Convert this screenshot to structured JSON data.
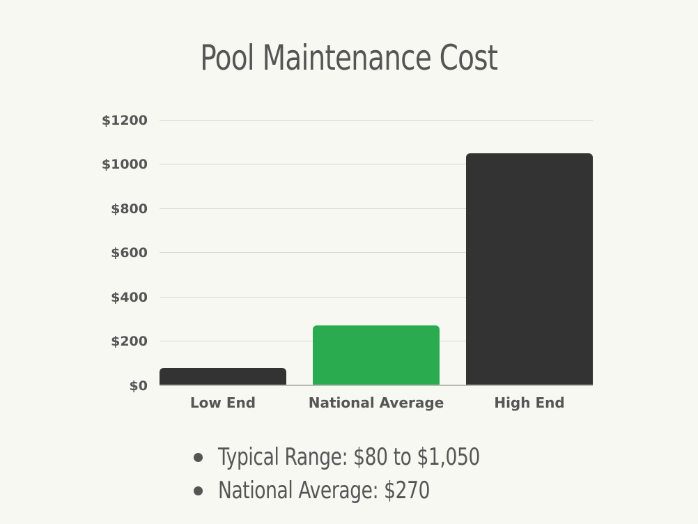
{
  "title": "Pool Maintenance Cost",
  "axis": {
    "y_ticks": [
      "$0",
      "$200",
      "$400",
      "$600",
      "$800",
      "$1000",
      "$1200"
    ]
  },
  "bars": [
    {
      "label": "Low End",
      "value": 80,
      "color": "#333333"
    },
    {
      "label": "National Average",
      "value": 270,
      "color": "#2aab50"
    },
    {
      "label": "High End",
      "value": 1050,
      "color": "#333333"
    }
  ],
  "notes": [
    "Typical Range: $80 to $1,050",
    "National Average: $270"
  ],
  "chart_data": {
    "type": "bar",
    "title": "Pool Maintenance Cost",
    "categories": [
      "Low End",
      "National Average",
      "High End"
    ],
    "values": [
      80,
      270,
      1050
    ],
    "colors": [
      "#333333",
      "#2aab50",
      "#333333"
    ],
    "xlabel": "",
    "ylabel": "",
    "ylim": [
      0,
      1200
    ],
    "y_ticks": [
      0,
      200,
      400,
      600,
      800,
      1000,
      1200
    ],
    "y_tick_labels": [
      "$0",
      "$200",
      "$400",
      "$600",
      "$800",
      "$1000",
      "$1200"
    ],
    "grid": true,
    "legend": null,
    "annotations": [
      "Typical Range: $80 to $1,050",
      "National Average: $270"
    ]
  }
}
